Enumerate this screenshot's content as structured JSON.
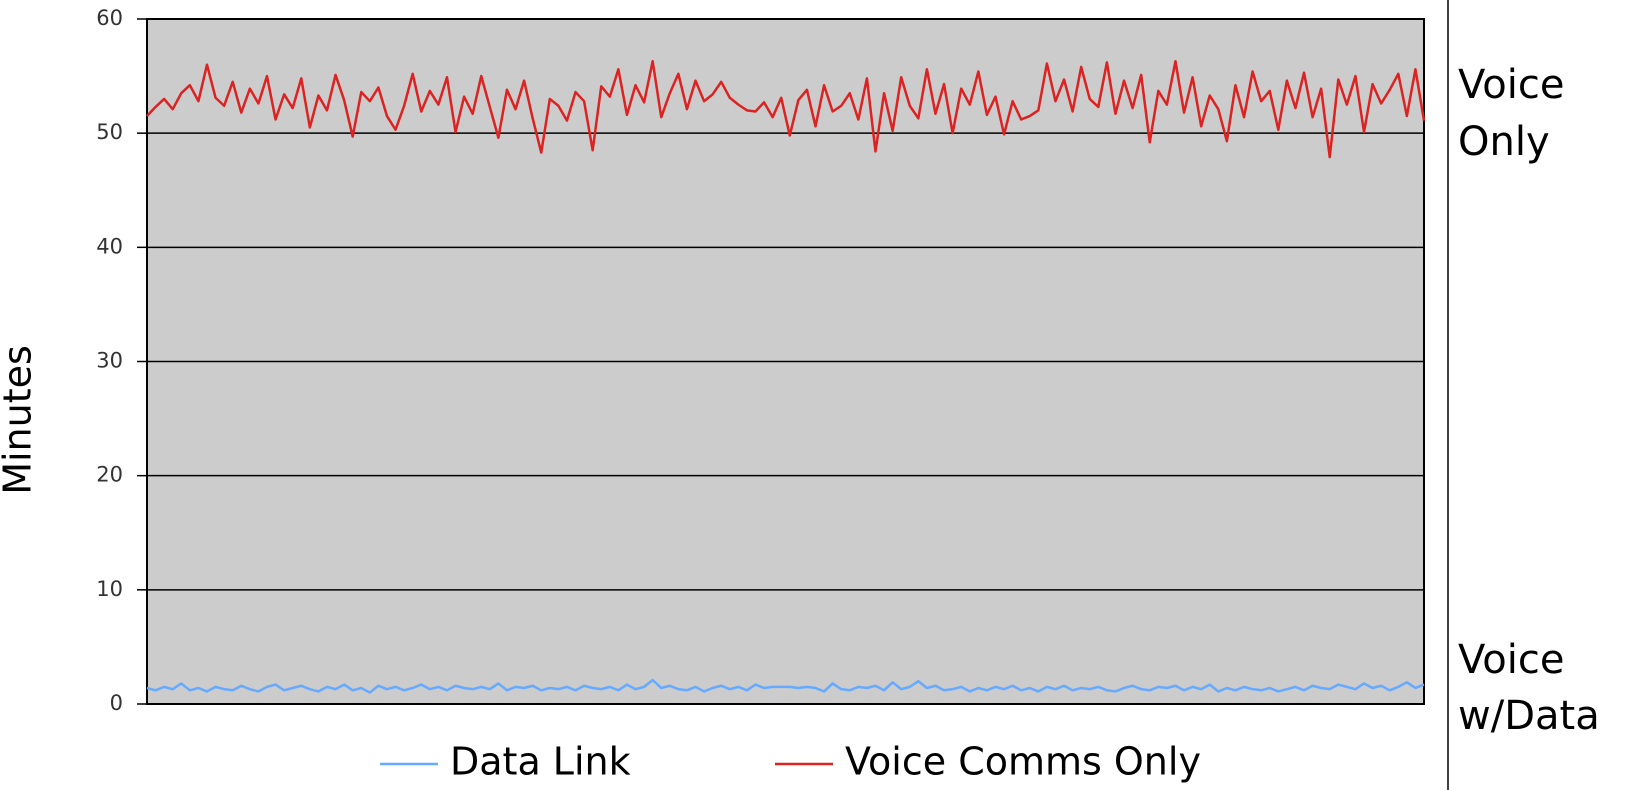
{
  "chart_data": {
    "type": "line",
    "y_label": "Minutes",
    "annotations": [
      "Voice",
      "Only",
      "Voice",
      "w/Data"
    ],
    "ylim": [
      0,
      60
    ],
    "yticks": [
      0,
      10,
      20,
      30,
      40,
      50,
      60
    ],
    "grid": true,
    "legend": "bottom",
    "series": [
      {
        "name": "Data Link",
        "color": "#66aaff",
        "values": [
          1.4,
          1.2,
          1.5,
          1.3,
          1.8,
          1.2,
          1.4,
          1.1,
          1.5,
          1.3,
          1.2,
          1.6,
          1.3,
          1.1,
          1.5,
          1.7,
          1.2,
          1.4,
          1.6,
          1.3,
          1.1,
          1.5,
          1.3,
          1.7,
          1.2,
          1.4,
          1.0,
          1.6,
          1.3,
          1.5,
          1.2,
          1.4,
          1.7,
          1.3,
          1.5,
          1.2,
          1.6,
          1.4,
          1.3,
          1.5,
          1.3,
          1.8,
          1.2,
          1.5,
          1.4,
          1.6,
          1.2,
          1.4,
          1.3,
          1.5,
          1.2,
          1.6,
          1.4,
          1.3,
          1.5,
          1.2,
          1.7,
          1.3,
          1.5,
          2.1,
          1.4,
          1.6,
          1.3,
          1.2,
          1.5,
          1.1,
          1.4,
          1.6,
          1.3,
          1.5,
          1.2,
          1.7,
          1.4,
          1.5,
          1.5,
          1.5,
          1.4,
          1.5,
          1.4,
          1.1,
          1.8,
          1.3,
          1.2,
          1.5,
          1.4,
          1.6,
          1.2,
          1.9,
          1.3,
          1.5,
          2.0,
          1.4,
          1.6,
          1.2,
          1.3,
          1.5,
          1.1,
          1.4,
          1.2,
          1.5,
          1.3,
          1.6,
          1.2,
          1.4,
          1.1,
          1.5,
          1.3,
          1.6,
          1.2,
          1.4,
          1.3,
          1.5,
          1.2,
          1.1,
          1.4,
          1.6,
          1.3,
          1.2,
          1.5,
          1.4,
          1.6,
          1.2,
          1.5,
          1.3,
          1.7,
          1.1,
          1.4,
          1.2,
          1.5,
          1.3,
          1.2,
          1.4,
          1.1,
          1.3,
          1.5,
          1.2,
          1.6,
          1.4,
          1.3,
          1.7,
          1.5,
          1.3,
          1.8,
          1.4,
          1.6,
          1.2,
          1.5,
          1.9,
          1.4,
          1.7
        ]
      },
      {
        "name": "Voice Comms Only",
        "color": "#dd2222",
        "values": [
          51.5,
          52.3,
          53,
          52.1,
          53.5,
          54.2,
          52.8,
          56,
          53.1,
          52.4,
          54.5,
          51.8,
          53.9,
          52.6,
          55,
          51.2,
          53.4,
          52.2,
          54.8,
          50.5,
          53.3,
          52,
          55.1,
          52.9,
          49.7,
          53.6,
          52.8,
          54,
          51.5,
          50.3,
          52.4,
          55.2,
          51.9,
          53.7,
          52.5,
          54.9,
          50.1,
          53.2,
          51.7,
          55,
          52.3,
          49.6,
          53.8,
          52.1,
          54.6,
          51.3,
          48.3,
          53,
          52.4,
          51.1,
          53.6,
          52.8,
          48.5,
          54.1,
          53.2,
          55.6,
          51.6,
          54.2,
          52.7,
          56.3,
          51.4,
          53.5,
          55.2,
          52.1,
          54.6,
          52.8,
          53.4,
          54.5,
          53.1,
          52.5,
          52,
          51.9,
          52.7,
          51.4,
          53.1,
          49.8,
          52.9,
          53.8,
          50.6,
          54.2,
          51.9,
          52.4,
          53.5,
          51.2,
          54.8,
          48.4,
          53.5,
          50.2,
          54.9,
          52.4,
          51.3,
          55.6,
          51.7,
          54.3,
          50,
          53.9,
          52.5,
          55.4,
          51.6,
          53.2,
          49.9,
          52.8,
          51.2,
          51.5,
          52,
          56.1,
          52.8,
          54.7,
          51.9,
          55.8,
          53,
          52.3,
          56.2,
          51.7,
          54.6,
          52.2,
          55.1,
          49.2,
          53.7,
          52.5,
          56.3,
          51.8,
          54.9,
          50.6,
          53.3,
          52.1,
          49.3,
          54.2,
          51.4,
          55.4,
          52.8,
          53.7,
          50.3,
          54.6,
          52.2,
          55.3,
          51.4,
          53.9,
          47.9,
          54.7,
          52.5,
          55,
          50.1,
          54.3,
          52.6,
          53.8,
          55.2,
          51.5,
          55.6,
          51.1
        ]
      }
    ]
  }
}
